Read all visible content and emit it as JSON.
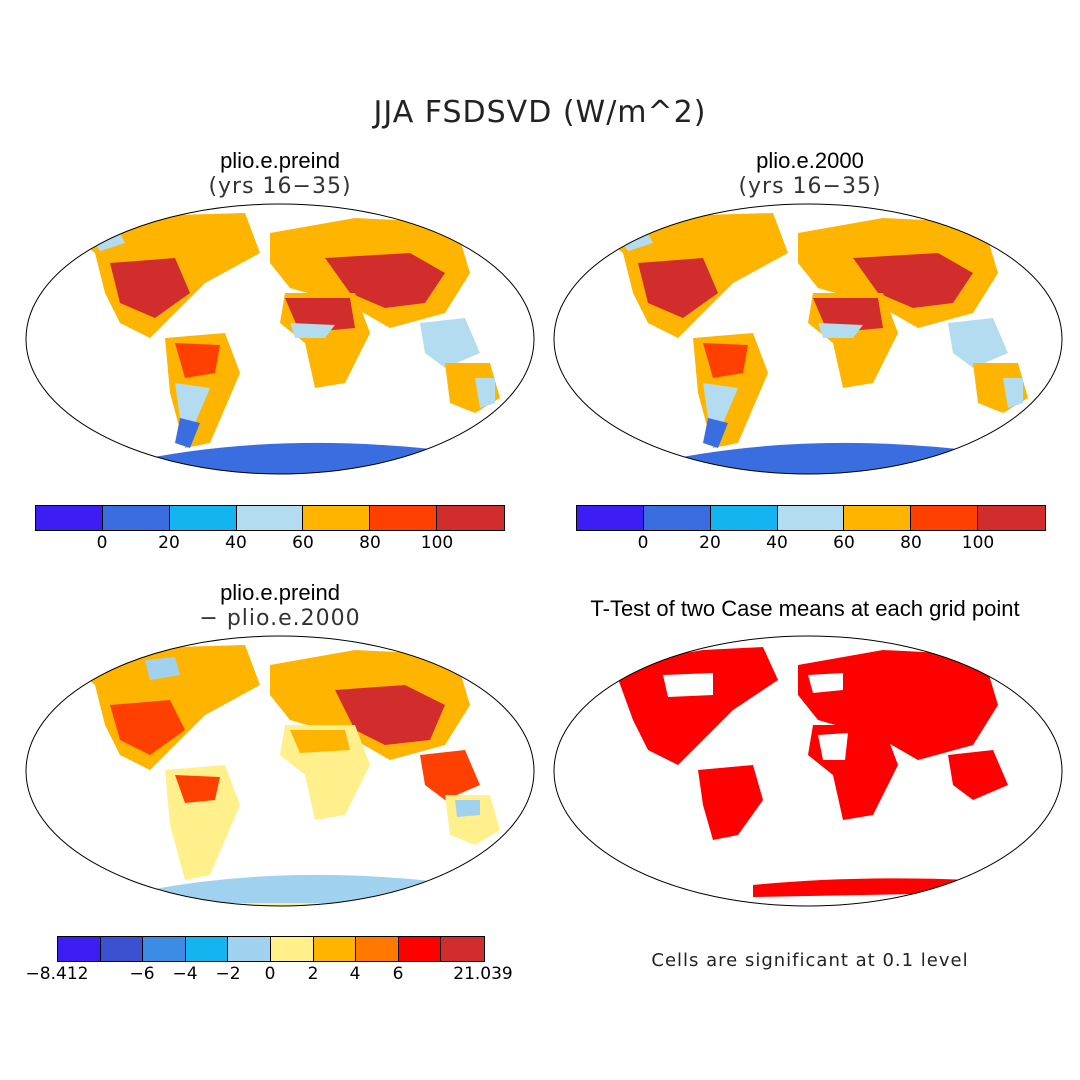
{
  "title": "JJA FSDSVD (W/m^2)",
  "panels": [
    {
      "id": "p1",
      "title": "plio.e.preind",
      "subtitle": "(yrs 16−35)"
    },
    {
      "id": "p2",
      "title": "plio.e.2000",
      "subtitle": "(yrs 16−35)"
    },
    {
      "id": "p3",
      "title": "plio.e.preind",
      "subtitle": "− plio.e.2000"
    },
    {
      "id": "p4",
      "title": "T-Test of two Case means at each grid point",
      "subtitle": ""
    }
  ],
  "colorbars": {
    "top": {
      "colors": [
        "#3c1ef5",
        "#3a6ee0",
        "#14b4f0",
        "#b4dcf0",
        "#ffb400",
        "#ff4000",
        "#d22d2d"
      ],
      "labels": [
        "0",
        "20",
        "40",
        "60",
        "80",
        "100"
      ]
    },
    "diff": {
      "colors": [
        "#3c1ef5",
        "#3c50d2",
        "#3c8ce6",
        "#14b4f0",
        "#a0d2f0",
        "#fff08c",
        "#ffb400",
        "#ff7800",
        "#ff0000",
        "#d22d2d"
      ],
      "labels": [
        "−8.412",
        "−6",
        "−4",
        "−2",
        "0",
        "2",
        "4",
        "6",
        "21.039"
      ]
    }
  },
  "note": "Cells are significant at 0.1 level",
  "colors": {
    "sig": "#ff0000",
    "ocean": "#ffffff",
    "outline": "#000000"
  }
}
